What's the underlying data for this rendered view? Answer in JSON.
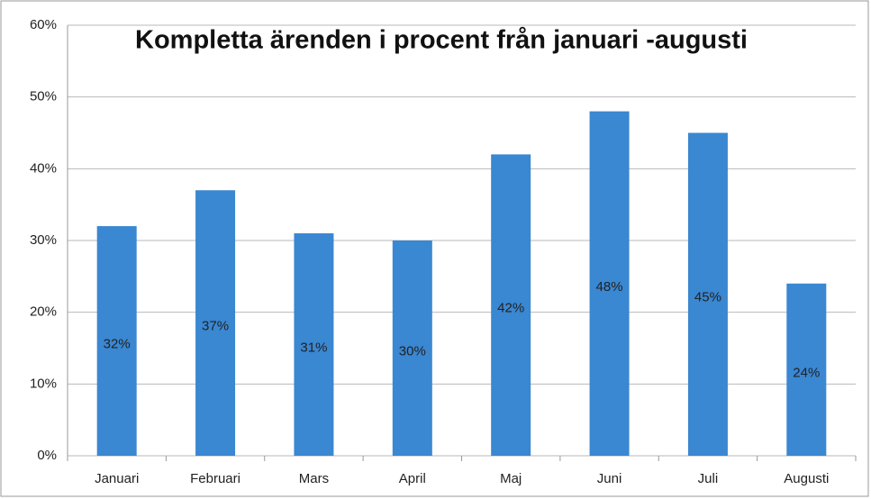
{
  "chart_data": {
    "type": "bar",
    "title": "Kompletta ärenden i procent från januari -augusti",
    "categories": [
      "Januari",
      "Februari",
      "Mars",
      "April",
      "Maj",
      "Juni",
      "Juli",
      "Augusti"
    ],
    "values": [
      32,
      37,
      31,
      30,
      42,
      48,
      45,
      24
    ],
    "value_labels": [
      "32%",
      "37%",
      "31%",
      "30%",
      "42%",
      "48%",
      "45%",
      "24%"
    ],
    "color": "#3a87d2",
    "ylim": [
      0,
      60
    ],
    "yticks": [
      {
        "value": 0,
        "label": "0%"
      },
      {
        "value": 10,
        "label": "10%"
      },
      {
        "value": 20,
        "label": "20%"
      },
      {
        "value": 30,
        "label": "30%"
      },
      {
        "value": 40,
        "label": "40%"
      },
      {
        "value": 50,
        "label": "50%"
      },
      {
        "value": 60,
        "label": "60%"
      }
    ],
    "grid": true
  }
}
